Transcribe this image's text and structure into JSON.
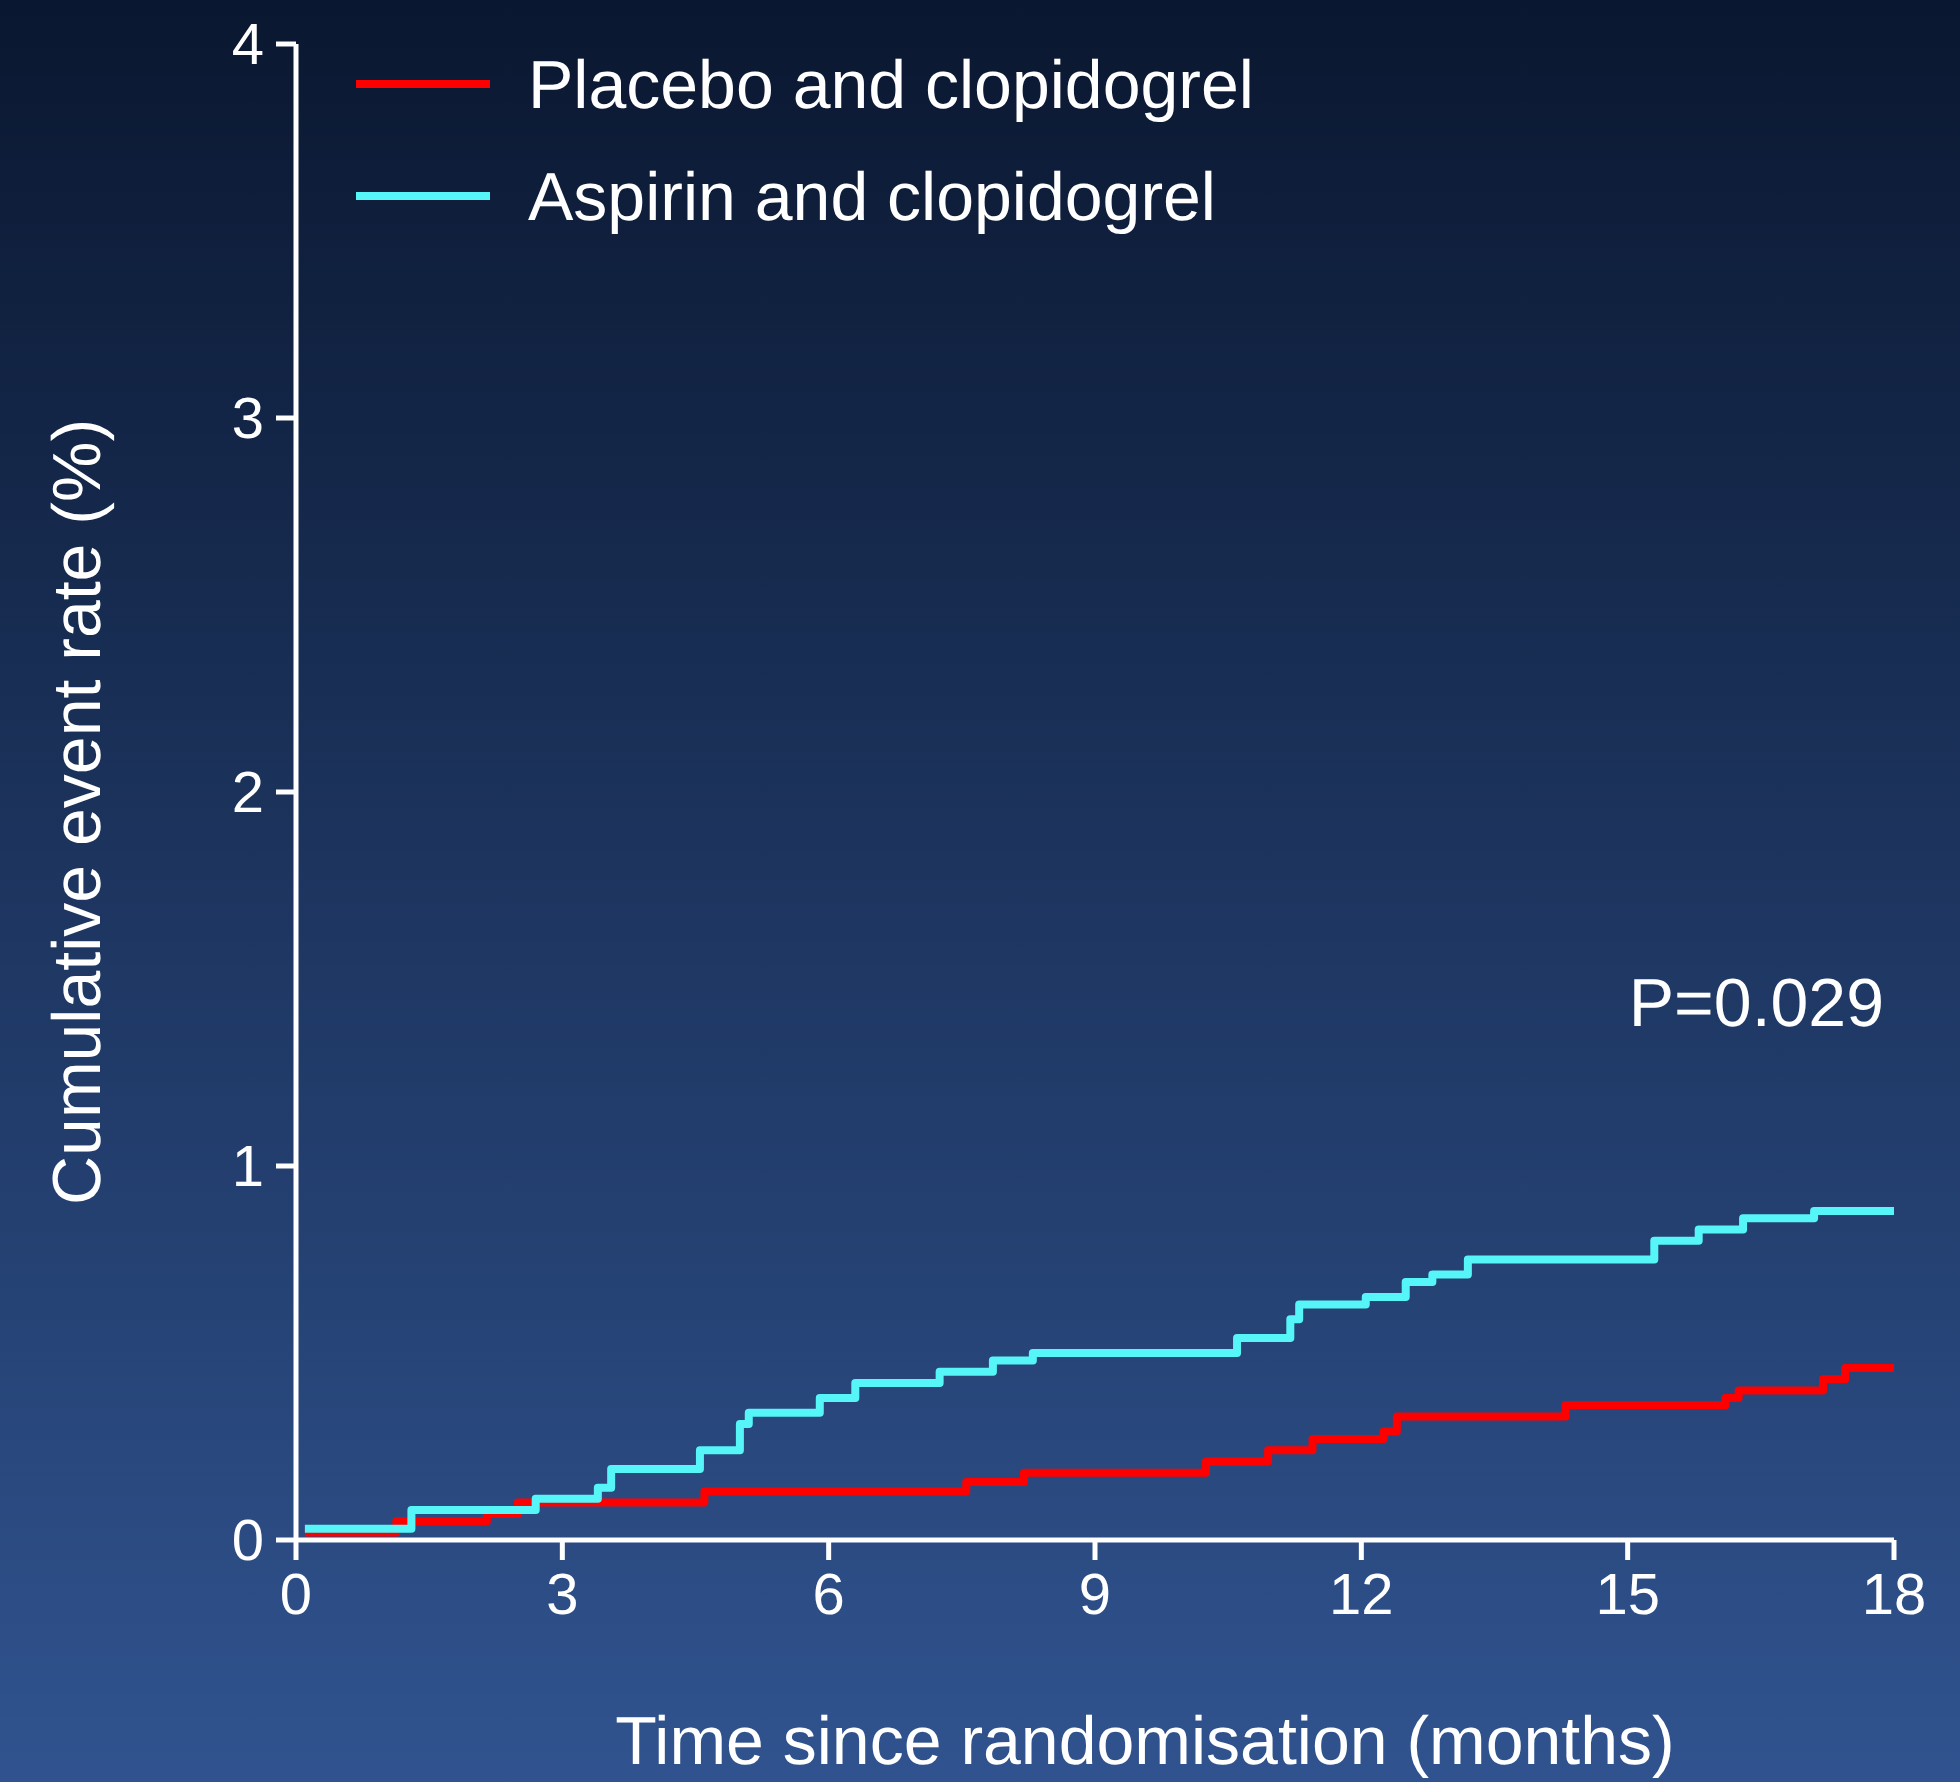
{
  "chart_data": {
    "type": "step",
    "xlabel": "Time since randomisation (months)",
    "ylabel": "Cumulative event rate (%)",
    "xlim": [
      0,
      18
    ],
    "xticks": [
      0,
      3,
      6,
      9,
      12,
      15,
      18
    ],
    "ylim": [
      0,
      4
    ],
    "yticks": [
      0,
      1,
      2,
      3,
      4
    ],
    "grid": false,
    "legend": "top left",
    "line_style": "solid",
    "marker": "none",
    "annotations": [
      "P=0.029"
    ],
    "series": [
      {
        "name": "Placebo and clopidogrel",
        "color": "#ff0000",
        "x": [
          0.1,
          1.13,
          2.15,
          2.5,
          4.6,
          7.55,
          8.2,
          10.25,
          10.95,
          11.45,
          12.25,
          12.4,
          14.3,
          16.1,
          16.25,
          17.2,
          17.45,
          18
        ],
        "values": [
          0.02,
          0.05,
          0.07,
          0.1,
          0.13,
          0.155,
          0.18,
          0.21,
          0.24,
          0.27,
          0.29,
          0.33,
          0.36,
          0.38,
          0.4,
          0.43,
          0.46,
          0.46
        ]
      },
      {
        "name": "Aspirin and clopidogrel",
        "color": "#55f5f8",
        "x": [
          0.1,
          1.3,
          2.7,
          3.4,
          3.55,
          4.55,
          5.0,
          5.1,
          5.9,
          6.3,
          7.25,
          7.85,
          8.3,
          10.6,
          11.2,
          11.3,
          12.05,
          12.5,
          12.8,
          13.2,
          15.3,
          15.8,
          16.3,
          17.1,
          18
        ],
        "values": [
          0.03,
          0.08,
          0.11,
          0.14,
          0.19,
          0.24,
          0.31,
          0.34,
          0.38,
          0.42,
          0.45,
          0.48,
          0.5,
          0.54,
          0.59,
          0.63,
          0.65,
          0.69,
          0.71,
          0.75,
          0.8,
          0.83,
          0.86,
          0.88,
          0.88
        ]
      }
    ]
  }
}
